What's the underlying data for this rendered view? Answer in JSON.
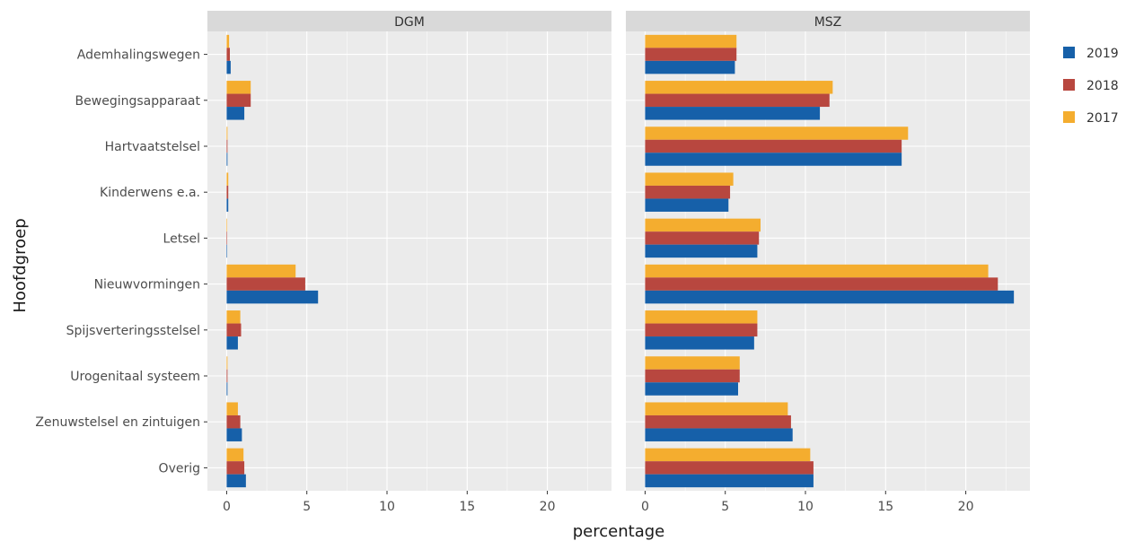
{
  "colors": {
    "2019": "#1660a9",
    "2018": "#b8473f",
    "2017": "#f4ad2f",
    "panel_bg": "#ebebeb",
    "strip_bg": "#d9d9d9",
    "grid": "#ffffff"
  },
  "chart_data": {
    "type": "bar",
    "orientation": "horizontal",
    "facets": [
      "DGM",
      "MSZ"
    ],
    "xlabel": "percentage",
    "ylabel": "Hoofdgroep",
    "categories": [
      "Ademhalingswegen",
      "Bewegingsapparaat",
      "Hartvaatstelsel",
      "Kinderwens e.a.",
      "Letsel",
      "Nieuwvormingen",
      "Spijsverteringsstelsel",
      "Urogenitaal systeem",
      "Zenuwstelsel en zintuigen",
      "Overig"
    ],
    "xlim": [
      -1.2,
      24
    ],
    "xticks": [
      0,
      5,
      10,
      15,
      20
    ],
    "legend_position": "right",
    "series": [
      {
        "name": "2019",
        "facet_values": {
          "DGM": [
            0.25,
            1.1,
            0.05,
            0.1,
            0.02,
            5.7,
            0.7,
            0.05,
            0.95,
            1.2
          ],
          "MSZ": [
            5.6,
            10.9,
            16.0,
            5.2,
            7.0,
            23.0,
            6.8,
            5.8,
            9.2,
            10.5
          ]
        }
      },
      {
        "name": "2018",
        "facet_values": {
          "DGM": [
            0.2,
            1.5,
            0.05,
            0.1,
            0.02,
            4.9,
            0.9,
            0.05,
            0.85,
            1.1
          ],
          "MSZ": [
            5.7,
            11.5,
            16.0,
            5.3,
            7.1,
            22.0,
            7.0,
            5.9,
            9.1,
            10.5
          ]
        }
      },
      {
        "name": "2017",
        "facet_values": {
          "DGM": [
            0.15,
            1.5,
            0.05,
            0.1,
            0.02,
            4.3,
            0.85,
            0.05,
            0.7,
            1.05
          ],
          "MSZ": [
            5.7,
            11.7,
            16.4,
            5.5,
            7.2,
            21.4,
            7.0,
            5.9,
            8.9,
            10.3
          ]
        }
      }
    ],
    "legend_order": [
      "2019",
      "2018",
      "2017"
    ],
    "grid": true
  }
}
